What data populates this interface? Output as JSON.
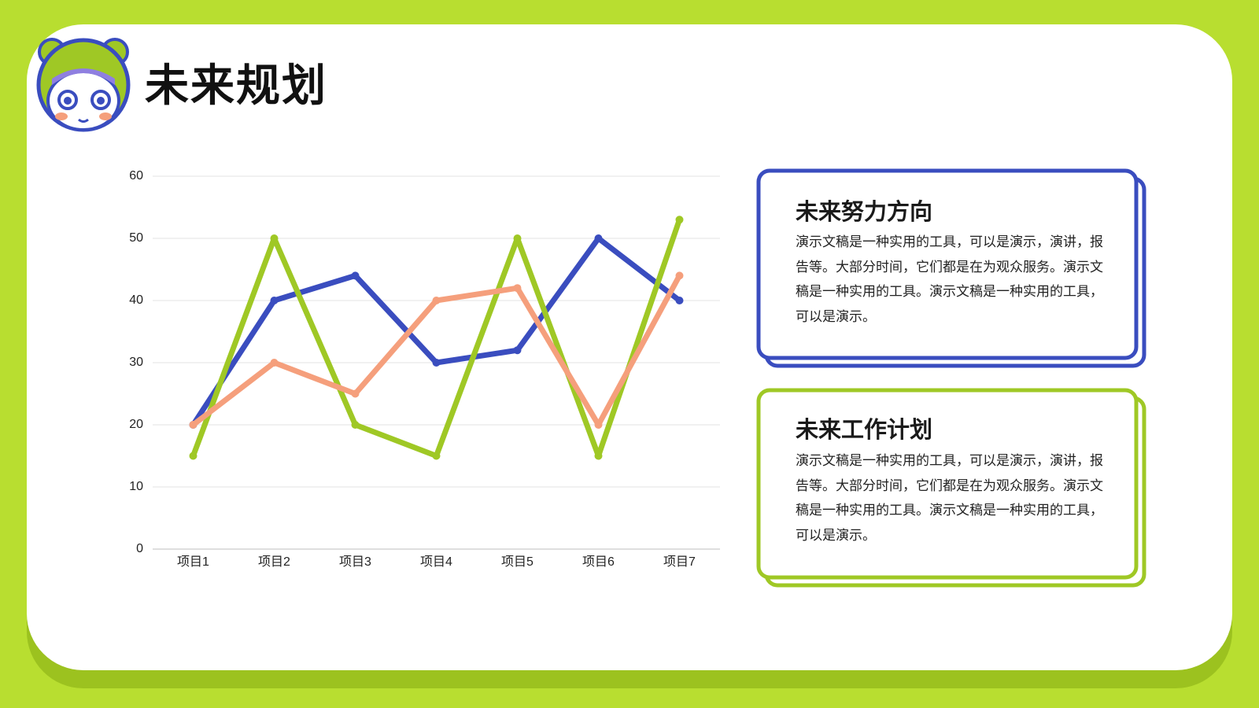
{
  "header": {
    "title": "未来规划"
  },
  "chart_data": {
    "type": "line",
    "categories": [
      "项目1",
      "项目2",
      "项目3",
      "项目4",
      "项目5",
      "项目6",
      "项目7"
    ],
    "series": [
      {
        "color": "#3a4dbf",
        "values": [
          20,
          40,
          44,
          30,
          32,
          50,
          40
        ]
      },
      {
        "color": "#9fc825",
        "values": [
          15,
          50,
          20,
          15,
          50,
          15,
          53
        ]
      },
      {
        "color": "#f59f7c",
        "values": [
          20,
          30,
          25,
          40,
          42,
          20,
          44
        ]
      }
    ],
    "ylim": [
      0,
      60
    ],
    "yticks": [
      0,
      10,
      20,
      30,
      40,
      50,
      60
    ],
    "grid": true
  },
  "cards": [
    {
      "title": "未来努力方向",
      "body": "演示文稿是一种实用的工具，可以是演示，演讲，报告等。大部分时间，它们都是在为观众服务。演示文稿是一种实用的工具。演示文稿是一种实用的工具，可以是演示。"
    },
    {
      "title": "未来工作计划",
      "body": "演示文稿是一种实用的工具，可以是演示，演讲，报告等。大部分时间，它们都是在为观众服务。演示文稿是一种实用的工具。演示文稿是一种实用的工具，可以是演示。"
    }
  ]
}
